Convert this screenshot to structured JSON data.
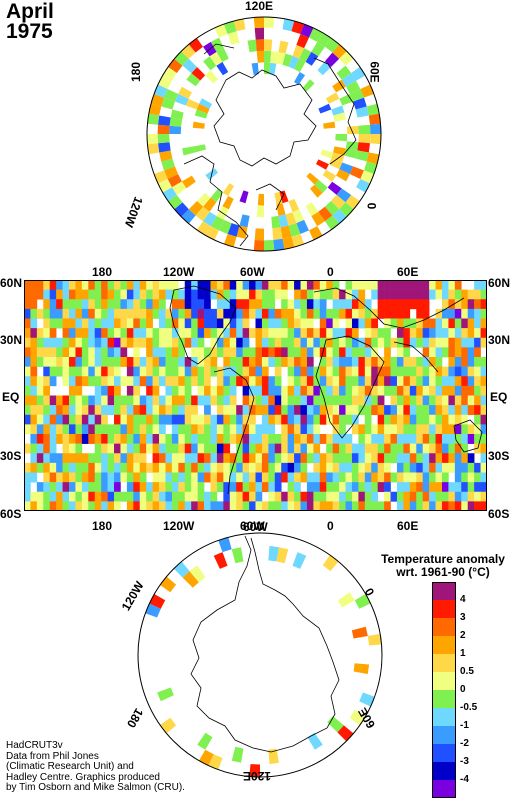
{
  "title": {
    "month": "April",
    "year": "1975"
  },
  "north_polar": {
    "labels": {
      "top": "120E",
      "right": "60E",
      "bottom_right": "0",
      "left": "180",
      "bottom_left": "120W"
    }
  },
  "world_map": {
    "top_lon_labels": [
      "180",
      "120W",
      "60W",
      "0",
      "60E"
    ],
    "bottom_lon_labels": [
      "180",
      "120W",
      "60W",
      "0",
      "60E"
    ],
    "lat_labels": [
      "60N",
      "30N",
      "EQ",
      "30S",
      "60S"
    ]
  },
  "south_polar": {
    "labels": {
      "top_left": "60W",
      "left": "120W",
      "right": "0",
      "bottom_left": "180",
      "bottom_right": "60E",
      "bottom": "120E"
    }
  },
  "legend": {
    "title_line1": "Temperature anomaly",
    "title_line2": "wrt. 1961-90  (°C)",
    "ticks": [
      "4",
      "3",
      "2",
      "1",
      "0.5",
      "0",
      "-0.5",
      "-1",
      "-2",
      "-3",
      "-4"
    ],
    "colors": [
      "#a0157a",
      "#ff1a00",
      "#ff6a00",
      "#ffa500",
      "#ffd84a",
      "#f0ff80",
      "#80f050",
      "#6fd8ff",
      "#3a9cff",
      "#2050ff",
      "#0000c8",
      "#7a00e0"
    ]
  },
  "credits": [
    "HadCRUT3v",
    "Data from Phil Jones",
    "(Climatic Research Unit) and",
    "Hadley Centre.  Graphics produced",
    "by Tim Osborn and Mike Salmon (CRU)."
  ]
}
